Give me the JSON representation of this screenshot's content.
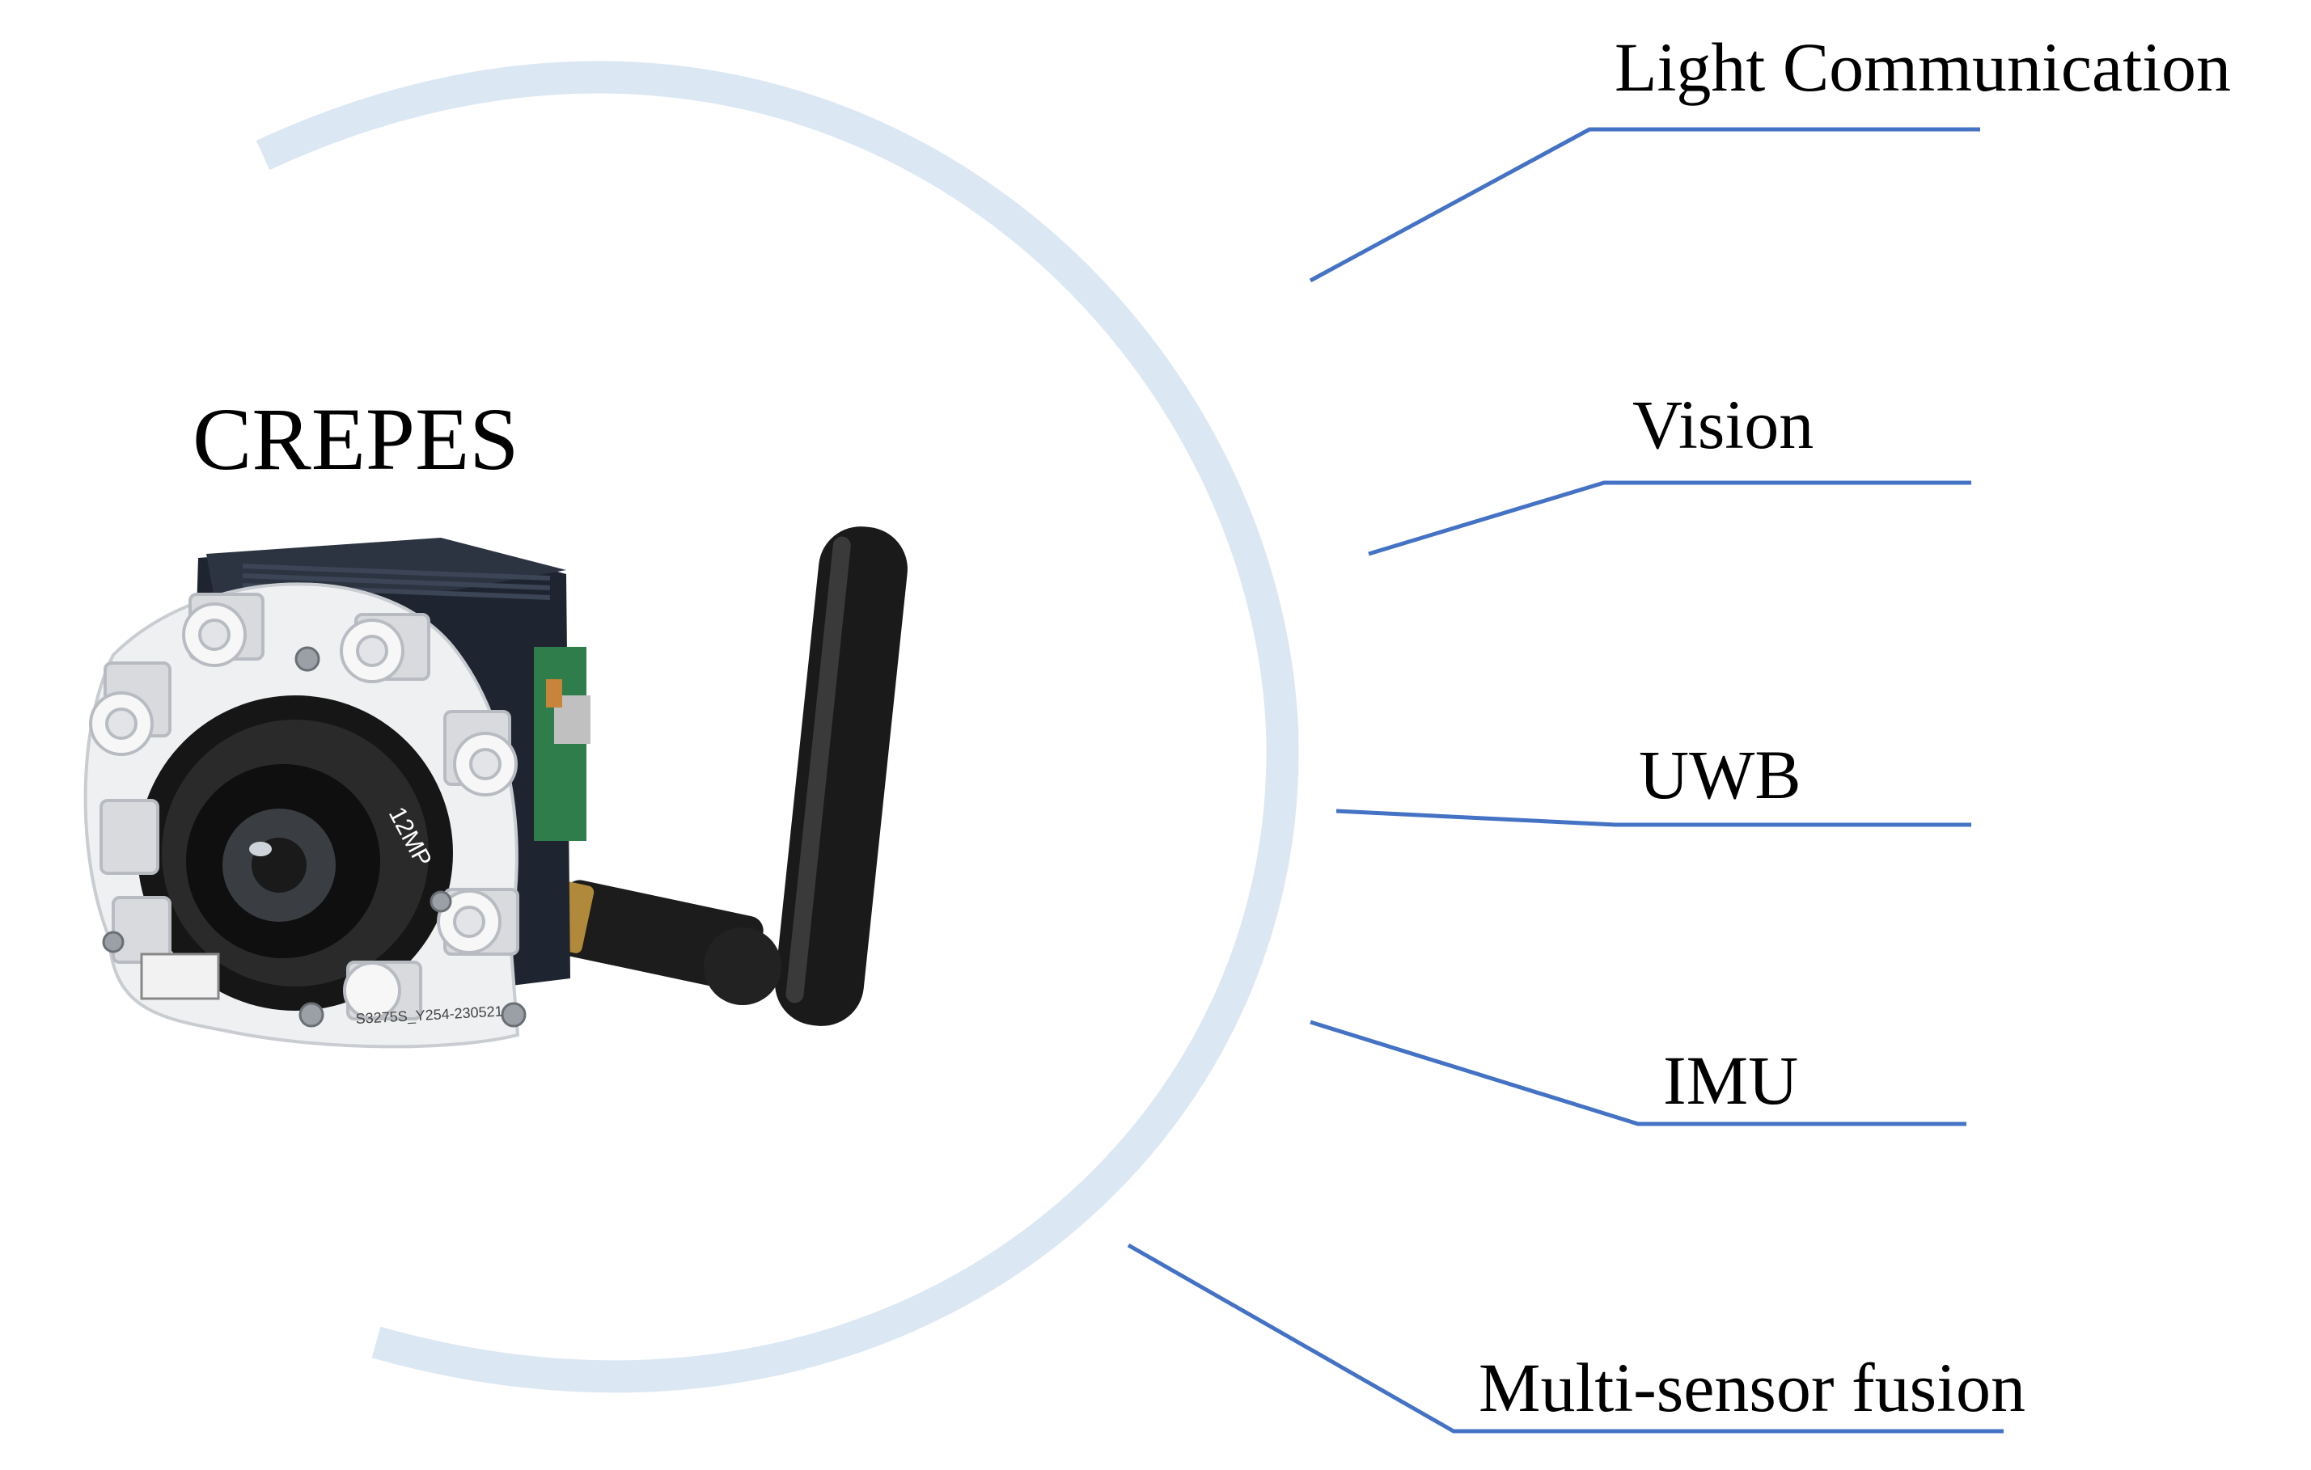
{
  "device": {
    "name": "CREPES",
    "photo_caption": "camera-module-with-led-ring-and-antenna",
    "board_marking": "S3275S_Y254-230521",
    "lens_marking": "12MP"
  },
  "features": [
    {
      "label": "Light Communication"
    },
    {
      "label": "Vision"
    },
    {
      "label": "UWB"
    },
    {
      "label": "IMU"
    },
    {
      "label": "Multi-sensor fusion"
    }
  ],
  "colors": {
    "arc": "#dbe7f3",
    "leader_lines": "#4472c4",
    "text": "#000000",
    "background": "#ffffff"
  }
}
